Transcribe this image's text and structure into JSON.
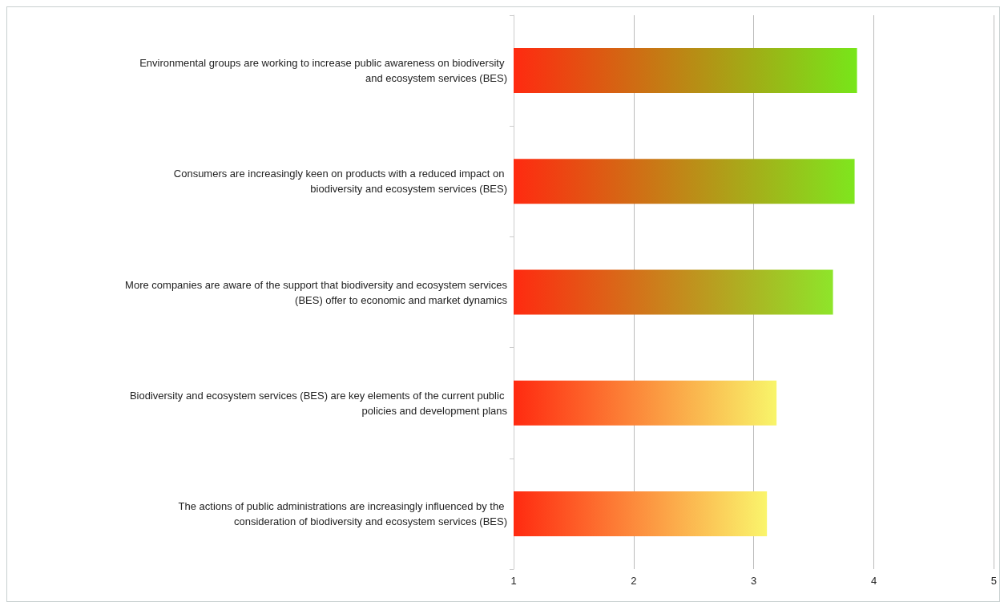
{
  "chart_data": {
    "type": "bar",
    "orientation": "horizontal",
    "categories": [
      "Environmental groups are working to increase public awareness on biodiversity and ecosystem services (BES)",
      "Consumers are increasingly keen on products with a reduced impact on biodiversity and ecosystem services (BES)",
      "More companies are aware of the support that biodiversity and ecosystem services (BES) offer to economic and market dynamics",
      "Biodiversity and ecosystem services (BES) are key elements of the current public policies and development plans",
      "The actions of public administrations are increasingly influenced by the consideration of biodiversity and ecosystem services (BES)"
    ],
    "values": [
      3.86,
      3.84,
      3.66,
      3.19,
      3.11
    ],
    "color": "#ff2a10",
    "colors": [
      "#77e619",
      "#7fe61e",
      "#8ee52a",
      "#f8f56a",
      "#faf56c"
    ],
    "xlim": [
      1,
      5
    ],
    "xticks": [
      1,
      2,
      3,
      4,
      5
    ],
    "grid": "x"
  }
}
